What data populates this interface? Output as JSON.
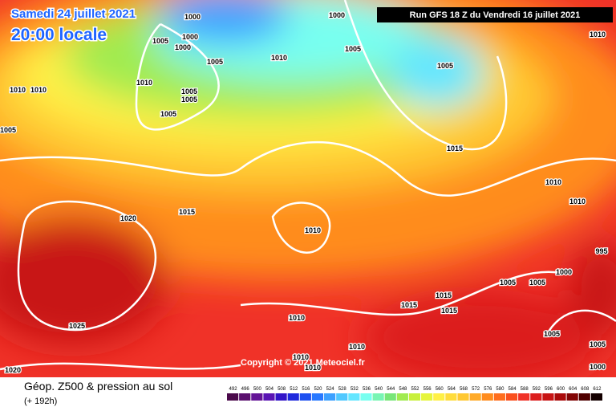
{
  "header": {
    "date": "Samedi 24 juillet 2021",
    "time": "20:00 locale",
    "run": "Run GFS 18 Z du Vendredi 16 juillet 2021",
    "copyright": "Copyright © 2021 Meteociel.fr"
  },
  "legend": {
    "title": "Géop. Z500 & pression au sol",
    "lead": "(+ 192h)",
    "scale": [
      492,
      496,
      500,
      504,
      508,
      512,
      516,
      520,
      524,
      528,
      532,
      536,
      540,
      544,
      548,
      552,
      556,
      560,
      564,
      568,
      572,
      576,
      580,
      584,
      588,
      592,
      596,
      600,
      604,
      608,
      612
    ],
    "colors": [
      "#4b0a4b",
      "#5a0f6e",
      "#641496",
      "#5a14b4",
      "#3214c8",
      "#1e28dc",
      "#1e50f0",
      "#2878ff",
      "#3ca0ff",
      "#50c8ff",
      "#64e6ff",
      "#78fff0",
      "#78f5b4",
      "#78e678",
      "#a0eb50",
      "#c8f03c",
      "#e6f53c",
      "#fff046",
      "#ffdc3c",
      "#ffc832",
      "#ffaa28",
      "#ff8c1e",
      "#ff6e1e",
      "#fa501e",
      "#f03228",
      "#dc1e1e",
      "#c81414",
      "#aa0a0a",
      "#820505",
      "#500000",
      "#140000"
    ]
  },
  "isobar_labels": [
    1000,
    1000,
    1005,
    1000,
    1000,
    1005,
    1010,
    1005,
    1010,
    1010,
    1010,
    1010,
    1005,
    1005,
    1005,
    1005,
    1005,
    1015,
    1010,
    1010,
    1020,
    1015,
    1010,
    995,
    1000,
    1005,
    1005,
    1015,
    1015,
    1015,
    1010,
    1025,
    1005,
    1005,
    1000,
    1010,
    1010,
    1010,
    1020
  ]
}
